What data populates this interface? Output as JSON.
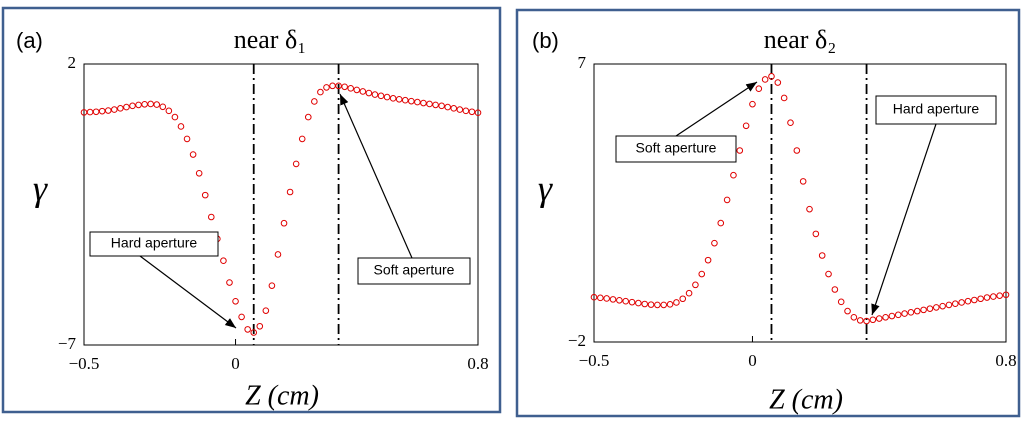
{
  "chart_data": [
    {
      "type": "scatter",
      "panel_label": "(a)",
      "title": "near δ₁",
      "xlabel": "Z (cm)",
      "ylabel": "γ",
      "color": "#e00000",
      "xlim": [
        -0.5,
        0.8
      ],
      "ylim": [
        -7,
        2
      ],
      "xticks": [
        {
          "value": -0.5,
          "label": "−0.5"
        },
        0,
        0.8
      ],
      "yticks": [
        {
          "value": -7,
          "label": "−7"
        },
        2
      ],
      "vlines": [
        0.06,
        0.34
      ],
      "annotations": [
        "Hard aperture",
        "Soft aperture"
      ],
      "x": [
        -0.5,
        -0.48,
        -0.46,
        -0.44,
        -0.42,
        -0.4,
        -0.38,
        -0.36,
        -0.34,
        -0.32,
        -0.3,
        -0.28,
        -0.26,
        -0.24,
        -0.22,
        -0.2,
        -0.18,
        -0.16,
        -0.14,
        -0.12,
        -0.1,
        -0.08,
        -0.06,
        -0.04,
        -0.02,
        0,
        0.02,
        0.04,
        0.06,
        0.08,
        0.1,
        0.12,
        0.14,
        0.16,
        0.18,
        0.2,
        0.22,
        0.24,
        0.26,
        0.28,
        0.3,
        0.32,
        0.34,
        0.36,
        0.38,
        0.4,
        0.42,
        0.44,
        0.46,
        0.48,
        0.5,
        0.52,
        0.54,
        0.56,
        0.58,
        0.6,
        0.62,
        0.64,
        0.66,
        0.68,
        0.7,
        0.72,
        0.74,
        0.76,
        0.78,
        0.8
      ],
      "values": [
        0.45,
        0.46,
        0.47,
        0.49,
        0.51,
        0.54,
        0.58,
        0.62,
        0.66,
        0.69,
        0.71,
        0.72,
        0.7,
        0.63,
        0.5,
        0.3,
        0,
        -0.4,
        -0.9,
        -1.5,
        -2.2,
        -2.9,
        -3.6,
        -4.3,
        -5,
        -5.6,
        -6.1,
        -6.5,
        -6.6,
        -6.4,
        -5.9,
        -5.1,
        -4.1,
        -3.1,
        -2.1,
        -1.2,
        -0.4,
        0.3,
        0.8,
        1.1,
        1.25,
        1.3,
        1.3,
        1.27,
        1.22,
        1.17,
        1.12,
        1.07,
        1.02,
        0.98,
        0.94,
        0.9,
        0.87,
        0.84,
        0.81,
        0.78,
        0.75,
        0.72,
        0.69,
        0.66,
        0.62,
        0.58,
        0.54,
        0.5,
        0.47,
        0.44
      ]
    },
    {
      "type": "scatter",
      "panel_label": "(b)",
      "title": "near δ₂",
      "xlabel": "Z (cm)",
      "ylabel": "γ",
      "color": "#e00000",
      "xlim": [
        -0.5,
        0.8
      ],
      "ylim": [
        -2,
        7
      ],
      "xticks": [
        {
          "value": -0.5,
          "label": "−0.5"
        },
        0,
        0.8
      ],
      "yticks": [
        {
          "value": -2,
          "label": "−2"
        },
        7
      ],
      "vlines": [
        0.06,
        0.36
      ],
      "annotations": [
        "Soft aperture",
        "Hard aperture"
      ],
      "x": [
        -0.5,
        -0.48,
        -0.46,
        -0.44,
        -0.42,
        -0.4,
        -0.38,
        -0.36,
        -0.34,
        -0.32,
        -0.3,
        -0.28,
        -0.26,
        -0.24,
        -0.22,
        -0.2,
        -0.18,
        -0.16,
        -0.14,
        -0.12,
        -0.1,
        -0.08,
        -0.06,
        -0.04,
        -0.02,
        0,
        0.02,
        0.04,
        0.06,
        0.08,
        0.1,
        0.12,
        0.14,
        0.16,
        0.18,
        0.2,
        0.22,
        0.24,
        0.26,
        0.28,
        0.3,
        0.32,
        0.34,
        0.36,
        0.38,
        0.4,
        0.42,
        0.44,
        0.46,
        0.48,
        0.5,
        0.52,
        0.54,
        0.56,
        0.58,
        0.6,
        0.62,
        0.64,
        0.66,
        0.68,
        0.7,
        0.72,
        0.74,
        0.76,
        0.78,
        0.8
      ],
      "values": [
        -0.55,
        -0.57,
        -0.59,
        -0.62,
        -0.65,
        -0.68,
        -0.71,
        -0.74,
        -0.77,
        -0.79,
        -0.8,
        -0.8,
        -0.78,
        -0.72,
        -0.6,
        -0.42,
        -0.15,
        0.2,
        0.65,
        1.2,
        1.85,
        2.6,
        3.4,
        4.2,
        5,
        5.7,
        6.2,
        6.5,
        6.6,
        6.4,
        5.9,
        5.1,
        4.2,
        3.2,
        2.3,
        1.5,
        0.8,
        0.2,
        -0.3,
        -0.7,
        -1,
        -1.2,
        -1.3,
        -1.32,
        -1.28,
        -1.24,
        -1.2,
        -1.16,
        -1.12,
        -1.08,
        -1.04,
        -1,
        -0.96,
        -0.92,
        -0.88,
        -0.84,
        -0.8,
        -0.76,
        -0.72,
        -0.68,
        -0.64,
        -0.6,
        -0.56,
        -0.53,
        -0.5,
        -0.47
      ]
    }
  ]
}
